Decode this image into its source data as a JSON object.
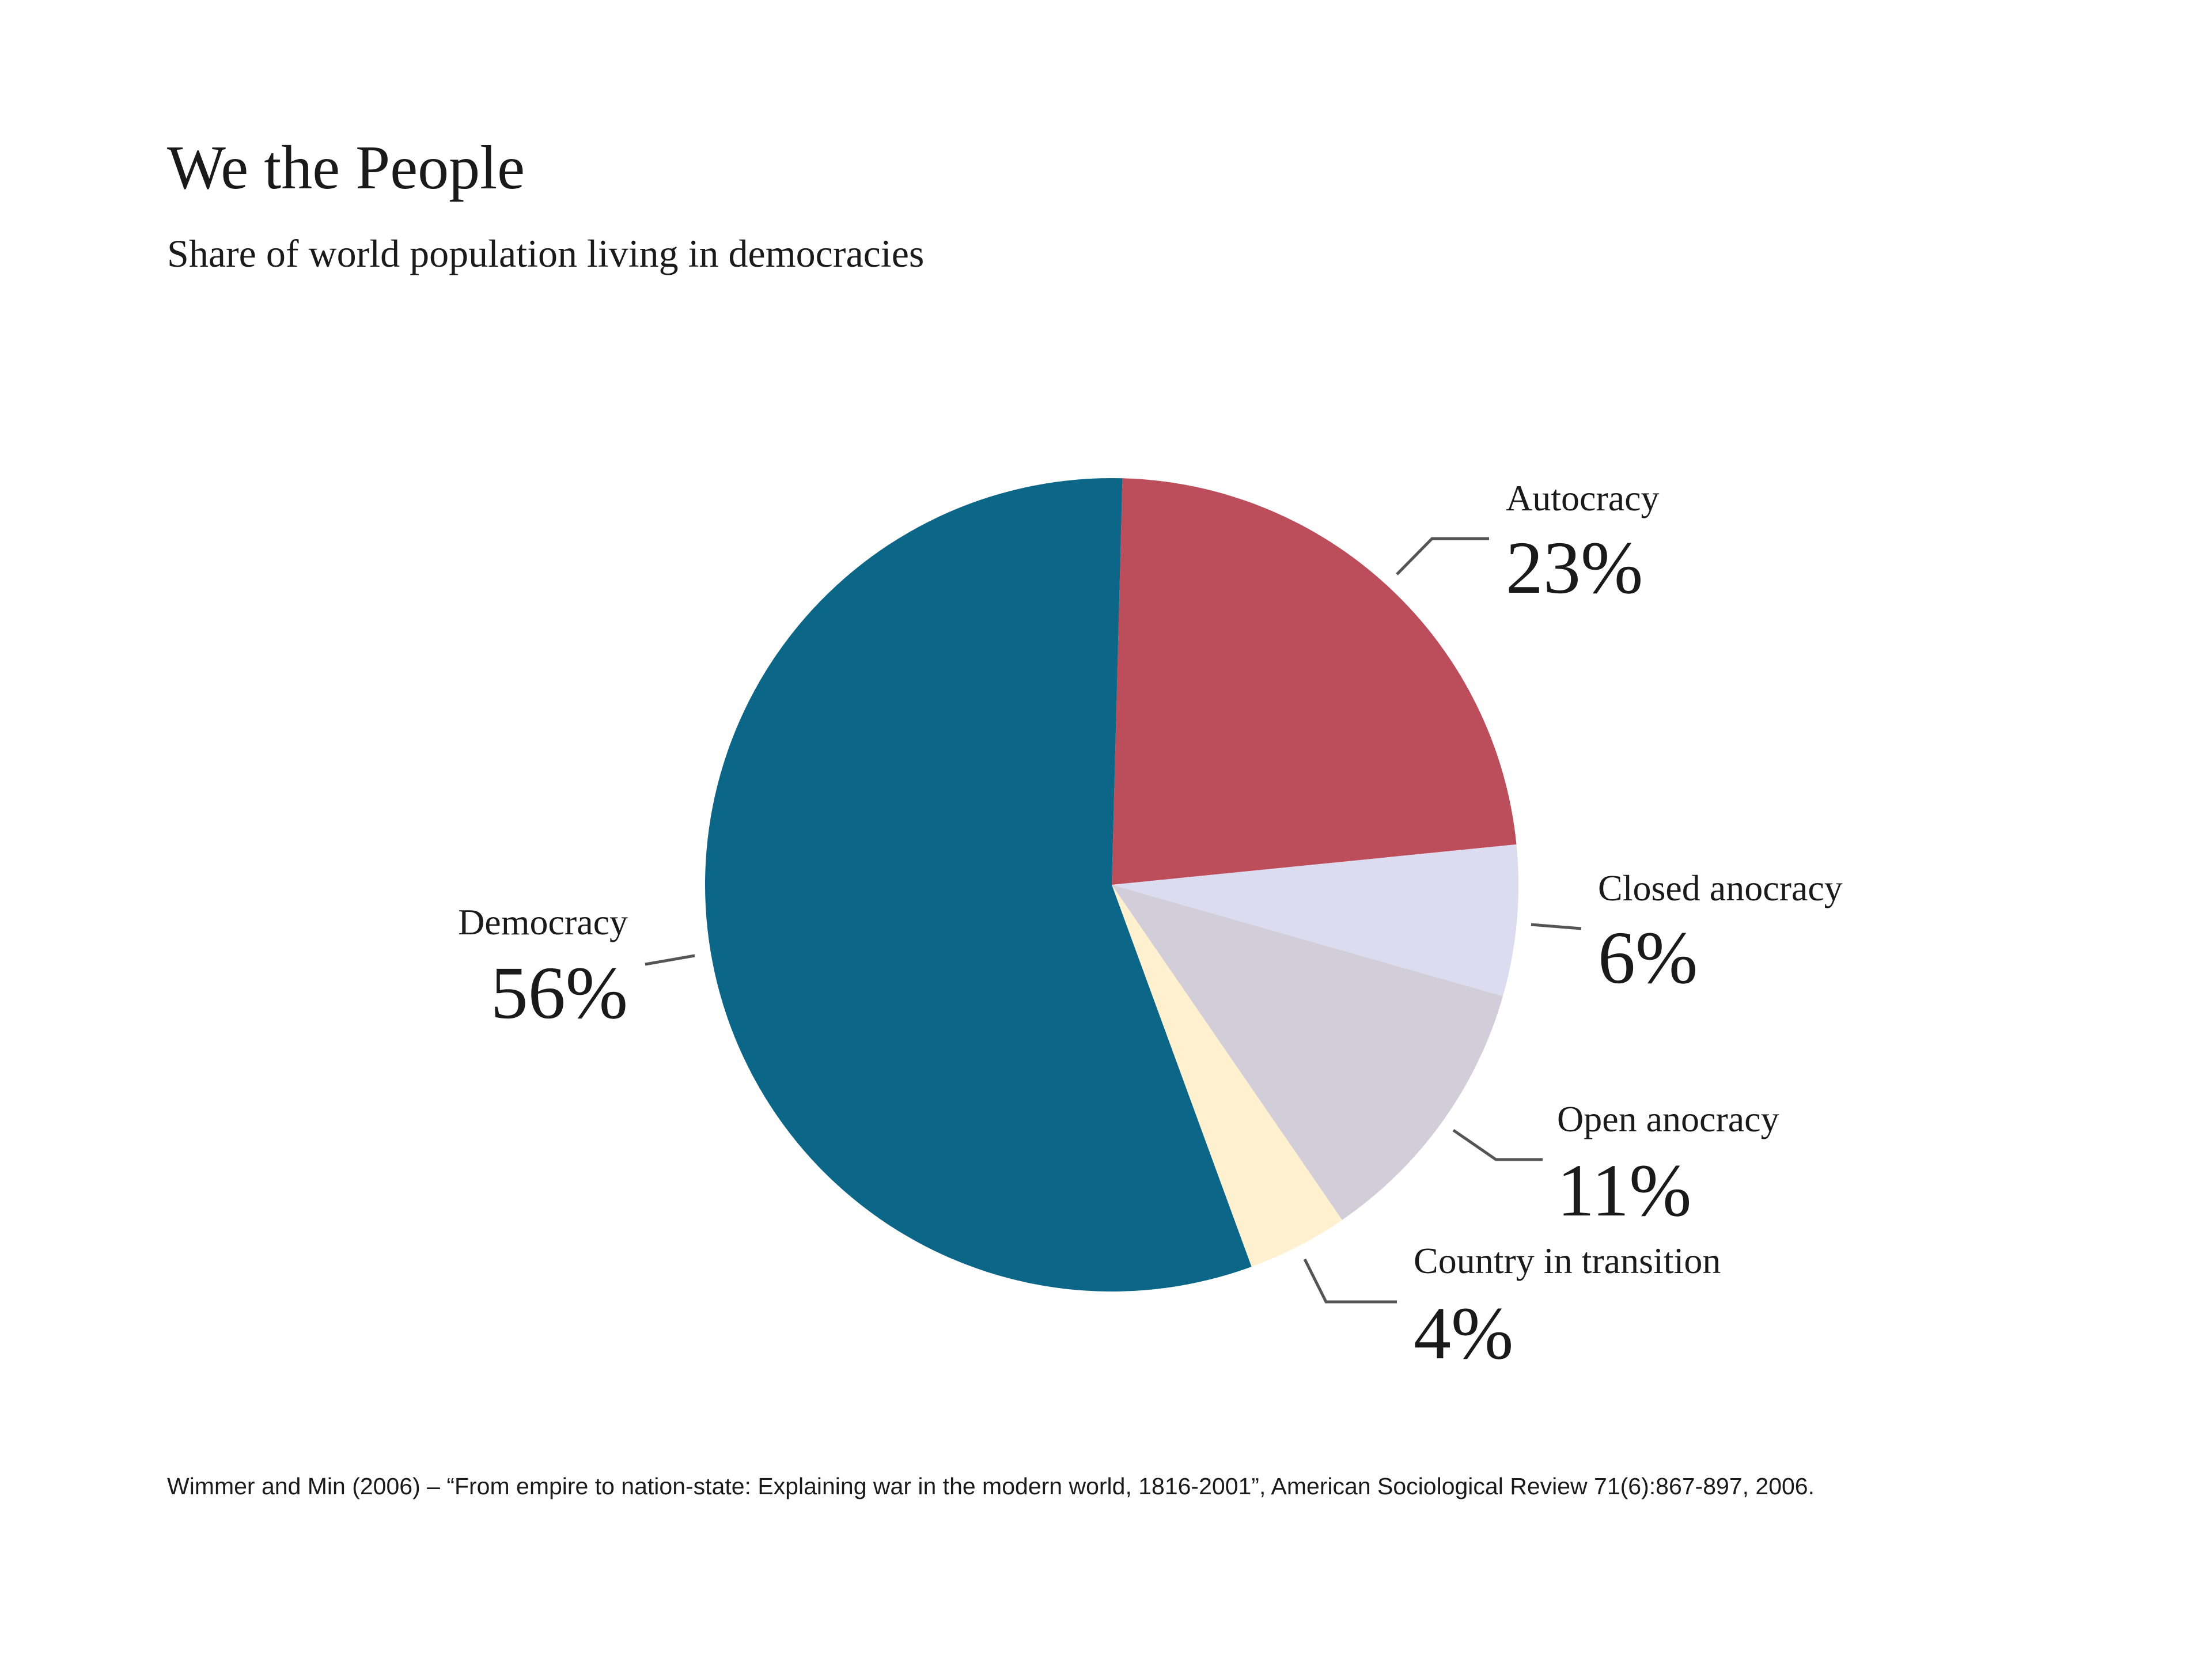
{
  "chart_data": {
    "type": "pie",
    "title": "We the People",
    "subtitle": "Share of world population living in democracies",
    "source": "Wimmer and Min (2006) – “From empire to nation-state: Explaining war in the modern world, 1816-2001”, American Sociological Review 71(6):867-897, 2006.",
    "slices": [
      {
        "label": "Autocracy",
        "value": 23,
        "value_label": "23%",
        "color": "#bc4e5c"
      },
      {
        "label": "Closed anocracy",
        "value": 6,
        "value_label": "6%",
        "color": "#dcdcf0"
      },
      {
        "label": "Open anocracy",
        "value": 11,
        "value_label": "11%",
        "color": "#d1ced9"
      },
      {
        "label": "Country in transition",
        "value": 4,
        "value_label": "4%",
        "color": "#fff0cf"
      },
      {
        "label": "Democracy",
        "value": 56,
        "value_label": "56%",
        "color": "#0b6688"
      }
    ],
    "direction": "clockwise",
    "legend": "none"
  }
}
